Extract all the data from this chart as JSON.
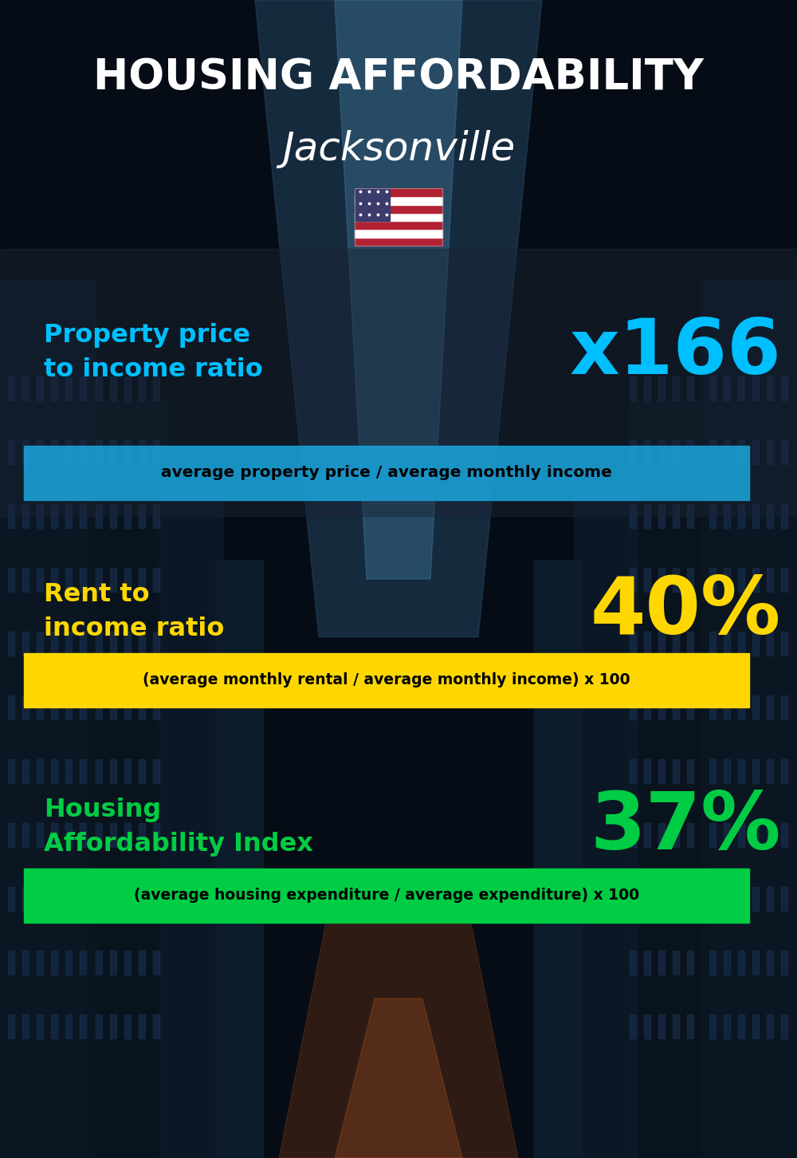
{
  "title_line1": "HOUSING AFFORDABILITY",
  "title_line2": "Jacksonville",
  "section1_label": "Property price\nto income ratio",
  "section1_value": "x166",
  "section1_label_color": "#00BFFF",
  "section1_value_color": "#00BFFF",
  "section1_band_text": "average property price / average monthly income",
  "section1_band_bg": "#1A9FD4",
  "section1_band_text_color": "#000000",
  "section2_label": "Rent to\nincome ratio",
  "section2_value": "40%",
  "section2_label_color": "#FFD700",
  "section2_value_color": "#FFD700",
  "section2_band_text": "(average monthly rental / average monthly income) x 100",
  "section2_band_bg": "#FFD700",
  "section2_band_text_color": "#000000",
  "section3_label": "Housing\nAffordability Index",
  "section3_value": "37%",
  "section3_label_color": "#00CC44",
  "section3_value_color": "#00CC44",
  "section3_band_text": "(average housing expenditure / average expenditure) x 100",
  "section3_band_bg": "#00CC44",
  "section3_band_text_color": "#000000",
  "bg_color": "#080e18",
  "title_color": "#FFFFFF",
  "city_color": "#FFFFFF",
  "fig_width": 10.0,
  "fig_height": 14.52
}
